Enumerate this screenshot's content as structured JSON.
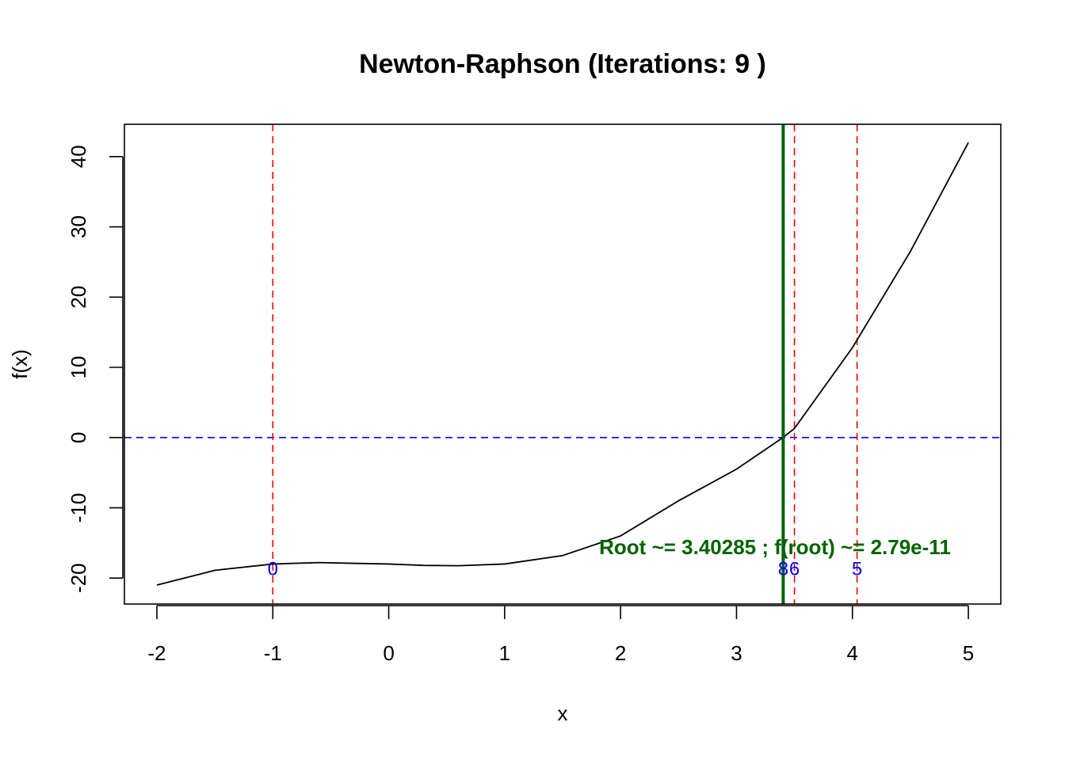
{
  "chart_data": {
    "type": "line",
    "title": "Newton-Raphson (Iterations: 9 )",
    "xlabel": "x",
    "ylabel": "f(x)",
    "xlim": [
      -2.28,
      5.28
    ],
    "ylim": [
      -23.7,
      44.6
    ],
    "x_ticks": [
      "-2",
      "-1",
      "0",
      "1",
      "2",
      "3",
      "4",
      "5"
    ],
    "y_ticks": [
      "-20",
      "-10",
      "0",
      "10",
      "20",
      "30",
      "40"
    ],
    "x_tick_values": [
      -2,
      -1,
      0,
      1,
      2,
      3,
      4,
      5
    ],
    "y_tick_values": [
      -20,
      -10,
      0,
      10,
      20,
      30,
      40
    ],
    "series": [
      {
        "x": [
          -2.0,
          -1.5,
          -1.0,
          -0.6,
          -0.3,
          0.0,
          0.3,
          0.6,
          1.0,
          1.5,
          2.0,
          2.5,
          3.0,
          3.4,
          3.5,
          4.0,
          4.5,
          5.0
        ],
        "values": [
          -21.0,
          -18.9,
          -18.0,
          -17.8,
          -17.9,
          -18.0,
          -18.2,
          -18.25,
          -18.0,
          -16.8,
          -14.0,
          -9.0,
          -4.5,
          0.0,
          1.3,
          12.8,
          26.5,
          42.0
        ],
        "color": "#000000"
      }
    ],
    "zero_line": {
      "y": 0,
      "color": "#0000ff",
      "style": "dashed"
    },
    "iterations": [
      {
        "label": "0",
        "x": -1.0
      },
      {
        "label": "5",
        "x": 4.04
      },
      {
        "label": "6",
        "x": 3.5
      },
      {
        "label": "8",
        "x": 3.403
      }
    ],
    "iteration_line_color": "#ff0000",
    "iteration_label_color": "#0000ff",
    "iteration_label_y": -18.6,
    "root": {
      "x": 3.40285,
      "color": "#006400"
    },
    "annotation": {
      "text": "Root ~= 3.40285 ; f(root) ~= 2.79e-11",
      "x": 3.4,
      "y": -15.6,
      "color": "#006400"
    },
    "grid": false,
    "legend": "none"
  }
}
